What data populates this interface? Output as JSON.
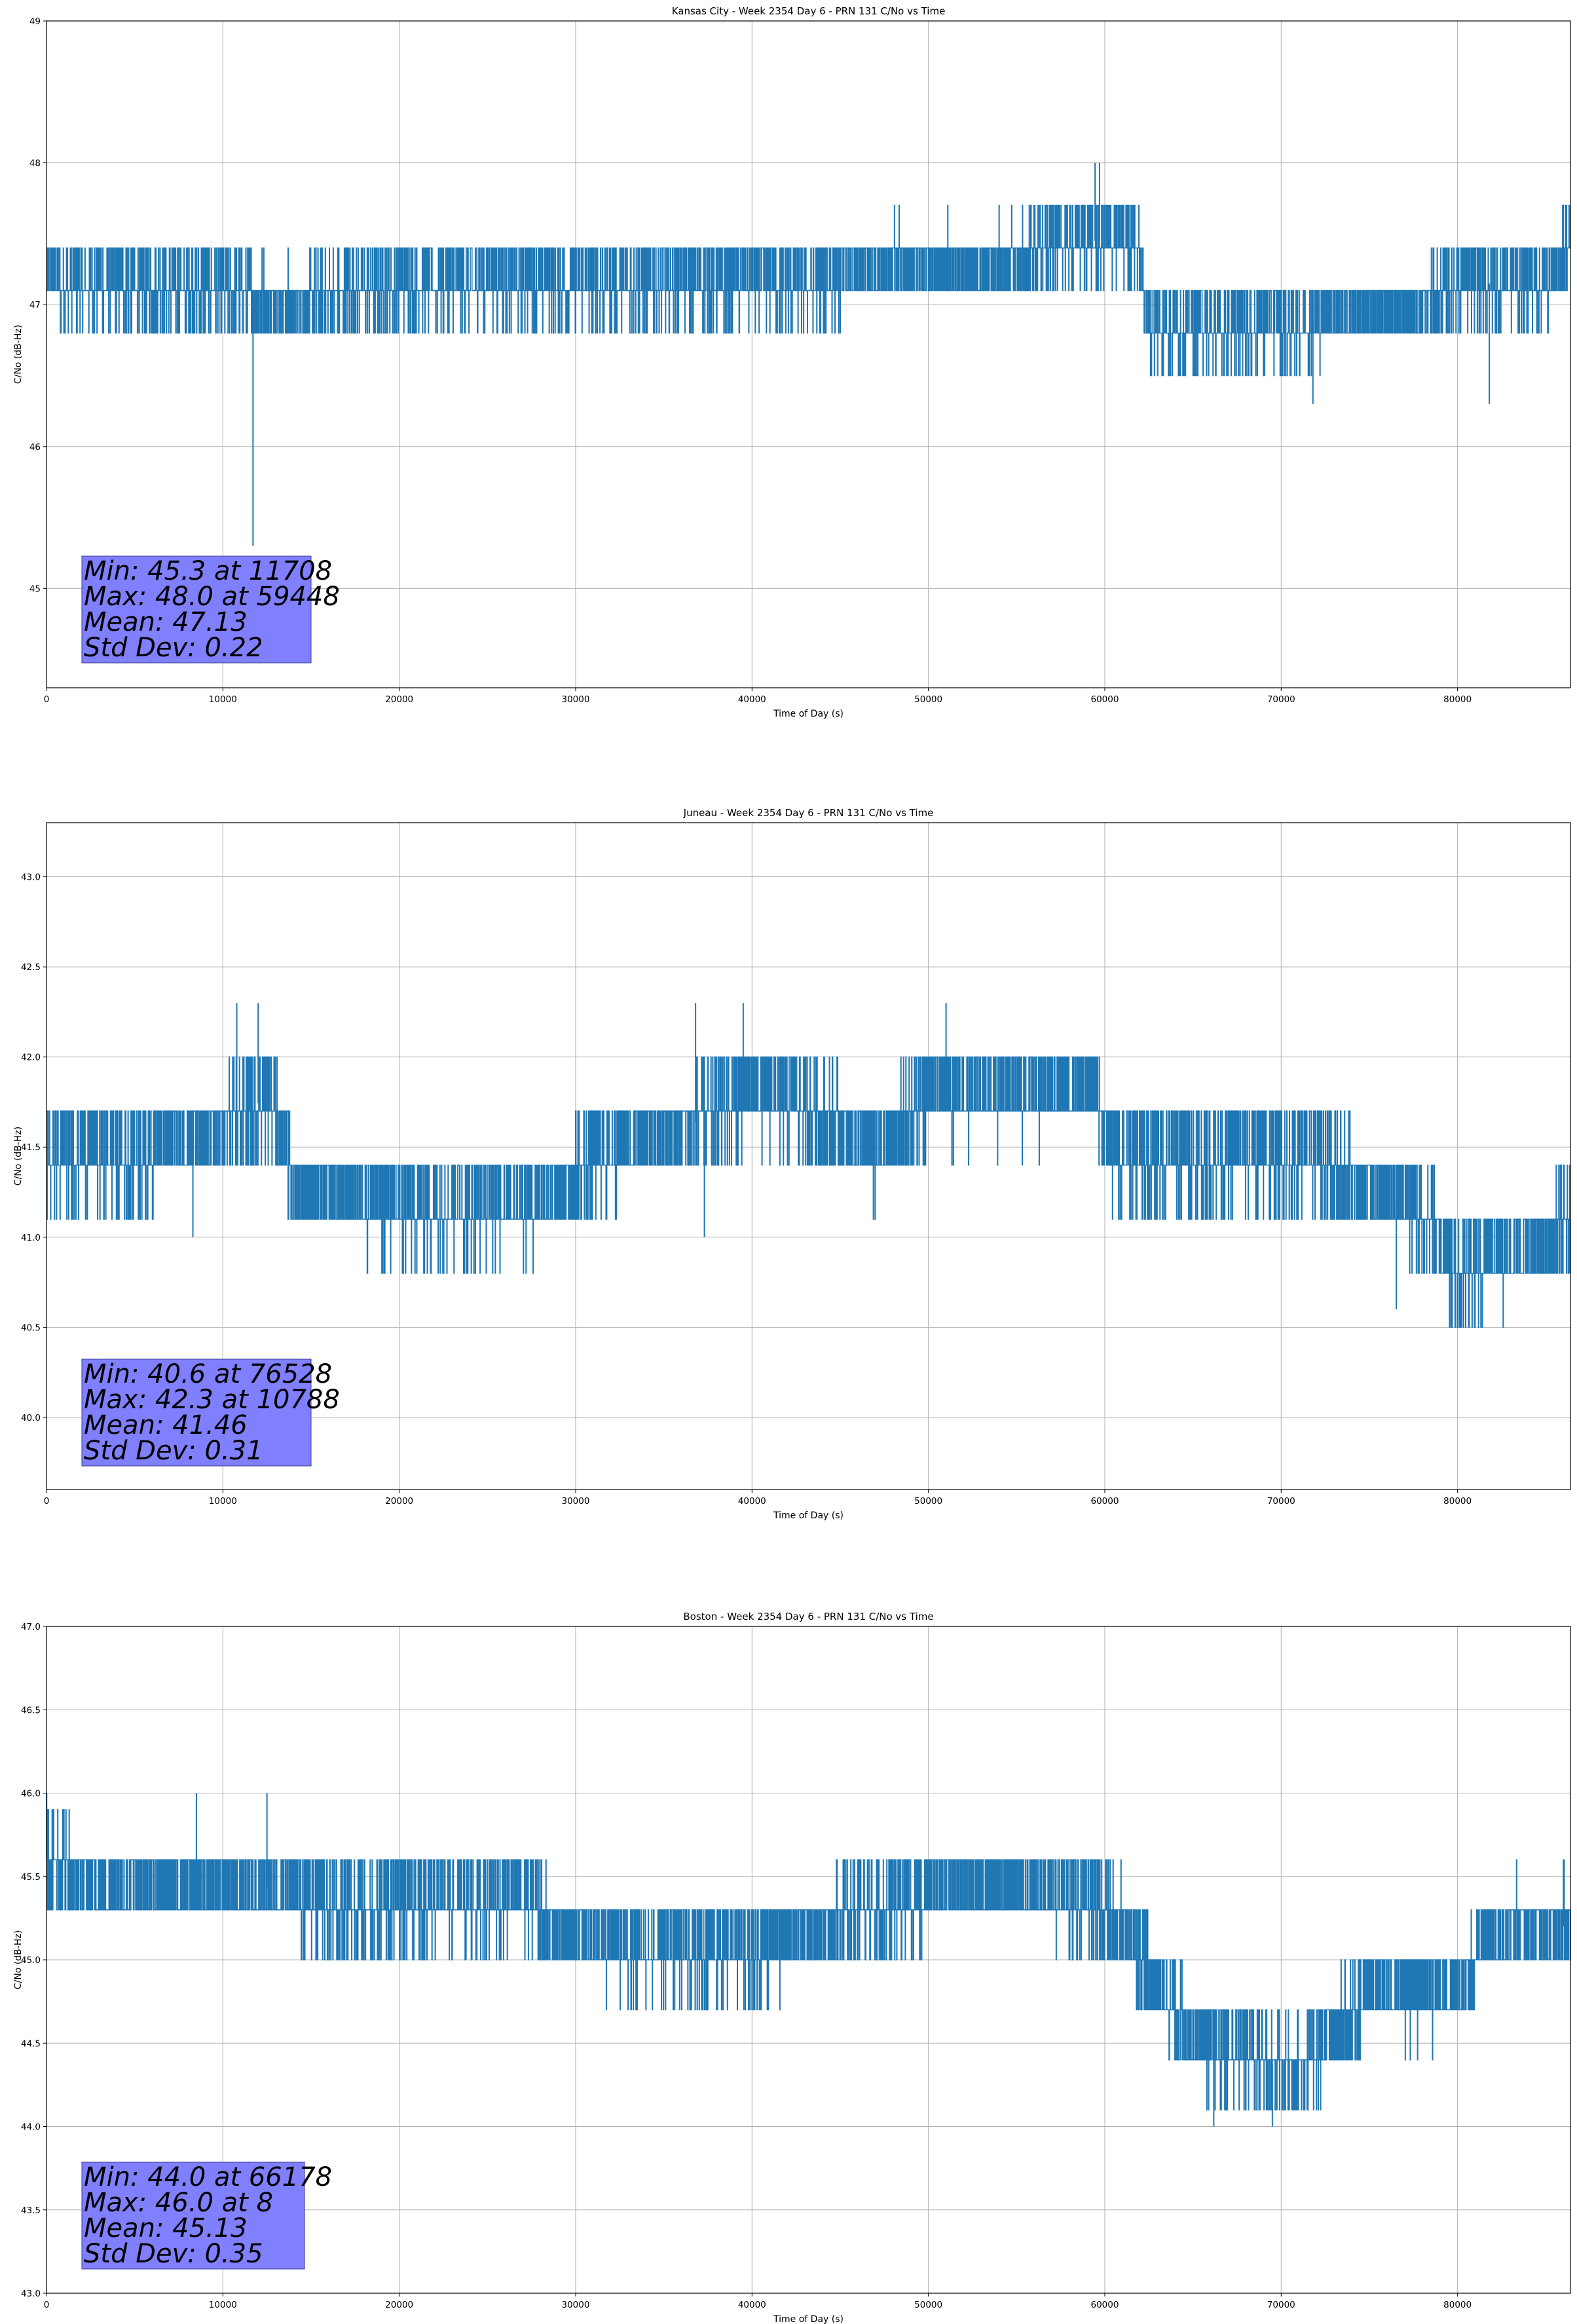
{
  "chart_data": [
    {
      "type": "line",
      "title": "Kansas City - Week 2354 Day 6 - PRN 131 C/No vs Time",
      "xlabel": "Time of Day (s)",
      "ylabel": "C/No (dB-Hz)",
      "xlim": [
        0,
        86400
      ],
      "ylim": [
        44.3,
        49.0
      ],
      "xticks": [
        0,
        10000,
        20000,
        30000,
        40000,
        50000,
        60000,
        70000,
        80000
      ],
      "xtick_labels": [
        "0",
        "10000",
        "20000",
        "30000",
        "40000",
        "50000",
        "60000",
        "70000",
        "80000"
      ],
      "yticks": [
        45,
        46,
        47,
        48,
        49
      ],
      "ytick_labels": [
        "45",
        "46",
        "47",
        "48",
        "49"
      ],
      "grid": true,
      "series_color": "#1f77b4",
      "quant_step": 0.3,
      "trend_x": [
        0,
        10000,
        14000,
        20000,
        36000,
        44000,
        48000,
        52000,
        55000,
        57000,
        59500,
        61800,
        62500,
        70000,
        78000,
        80000,
        85000,
        86400
      ],
      "trend_y": [
        47.15,
        47.1,
        47.0,
        47.15,
        47.15,
        47.15,
        47.3,
        47.3,
        47.3,
        47.45,
        47.45,
        47.45,
        46.85,
        46.85,
        47.0,
        47.15,
        47.15,
        47.45
      ],
      "spikes": [
        {
          "x": 11708,
          "y": 45.3
        },
        {
          "x": 59448,
          "y": 48.0
        },
        {
          "x": 59700,
          "y": 48.0
        },
        {
          "x": 71800,
          "y": 46.3
        },
        {
          "x": 81800,
          "y": 46.3
        }
      ],
      "stats": {
        "min": "Min: 45.3 at 11708",
        "max": "Max: 48.0 at 59448",
        "mean": "Mean: 47.13",
        "std": "Std Dev: 0.22"
      }
    },
    {
      "type": "line",
      "title": "Juneau - Week 2354 Day 6 - PRN 131 C/No vs Time",
      "xlabel": "Time of Day (s)",
      "ylabel": "C/No (dB-Hz)",
      "xlim": [
        0,
        86400
      ],
      "ylim": [
        39.6,
        43.3
      ],
      "xticks": [
        0,
        10000,
        20000,
        30000,
        40000,
        50000,
        60000,
        70000,
        80000
      ],
      "xtick_labels": [
        "0",
        "10000",
        "20000",
        "30000",
        "40000",
        "50000",
        "60000",
        "70000",
        "80000"
      ],
      "yticks": [
        40.0,
        40.5,
        41.0,
        41.5,
        42.0,
        42.5,
        43.0
      ],
      "ytick_labels": [
        "40.0",
        "40.5",
        "41.0",
        "41.5",
        "42.0",
        "42.5",
        "43.0"
      ],
      "grid": true,
      "series_color": "#1f77b4",
      "quant_step": 0.3,
      "trend_x": [
        0,
        5000,
        10000,
        12800,
        14000,
        20000,
        28000,
        31500,
        36000,
        40000,
        43000,
        47000,
        50000,
        55000,
        59500,
        60500,
        66000,
        72000,
        76500,
        78500,
        80000,
        86400
      ],
      "trend_y": [
        41.45,
        41.45,
        41.6,
        41.8,
        41.3,
        41.15,
        41.2,
        41.45,
        41.6,
        41.8,
        41.75,
        41.45,
        41.8,
        41.8,
        41.8,
        41.45,
        41.45,
        41.45,
        41.2,
        41.1,
        40.8,
        41.05
      ],
      "spikes": [
        {
          "x": 8300,
          "y": 41.0
        },
        {
          "x": 10788,
          "y": 42.3
        },
        {
          "x": 12000,
          "y": 42.3
        },
        {
          "x": 36800,
          "y": 42.3
        },
        {
          "x": 37300,
          "y": 41.0
        },
        {
          "x": 39500,
          "y": 42.3
        },
        {
          "x": 51000,
          "y": 42.3
        },
        {
          "x": 76528,
          "y": 40.6
        }
      ],
      "stats": {
        "min": "Min: 40.6 at 76528",
        "max": "Max: 42.3 at 10788",
        "mean": "Mean: 41.46",
        "std": "Std Dev: 0.31"
      }
    },
    {
      "type": "line",
      "title": "Boston - Week 2354 Day 6 - PRN 131 C/No vs Time",
      "xlabel": "Time of Day (s)",
      "ylabel": "C/No (dB-Hz)",
      "xlim": [
        0,
        86400
      ],
      "ylim": [
        43.0,
        47.0
      ],
      "xticks": [
        0,
        10000,
        20000,
        30000,
        40000,
        50000,
        60000,
        70000,
        80000
      ],
      "xtick_labels": [
        "0",
        "10000",
        "20000",
        "30000",
        "40000",
        "50000",
        "60000",
        "70000",
        "80000"
      ],
      "yticks": [
        43.0,
        43.5,
        44.0,
        44.5,
        45.0,
        45.5,
        46.0,
        46.5,
        47.0
      ],
      "ytick_labels": [
        "43.0",
        "43.5",
        "44.0",
        "44.5",
        "45.0",
        "45.5",
        "46.0",
        "46.5",
        "47.0"
      ],
      "grid": true,
      "series_color": "#1f77b4",
      "quant_step": 0.3,
      "trend_x": [
        0,
        3000,
        12000,
        17000,
        20000,
        28000,
        28500,
        33000,
        40000,
        44000,
        46000,
        53000,
        59000,
        61500,
        63000,
        64500,
        66000,
        68000,
        70000,
        72000,
        75000,
        80000,
        82000,
        86400
      ],
      "trend_y": [
        45.6,
        45.45,
        45.45,
        45.3,
        45.35,
        45.35,
        45.2,
        45.05,
        45.05,
        45.15,
        45.3,
        45.45,
        45.35,
        45.15,
        44.85,
        44.6,
        44.45,
        44.45,
        44.35,
        44.45,
        44.8,
        44.8,
        45.2,
        45.2
      ],
      "spikes": [
        {
          "x": 8,
          "y": 46.0
        },
        {
          "x": 8500,
          "y": 46.0
        },
        {
          "x": 12500,
          "y": 46.0
        },
        {
          "x": 66178,
          "y": 44.0
        },
        {
          "x": 69500,
          "y": 44.0
        },
        {
          "x": 86000,
          "y": 45.6
        }
      ],
      "stats": {
        "min": "Min: 44.0 at 66178",
        "max": "Max: 46.0 at 8",
        "mean": "Mean: 45.13",
        "std": "Std Dev: 0.35"
      }
    }
  ]
}
